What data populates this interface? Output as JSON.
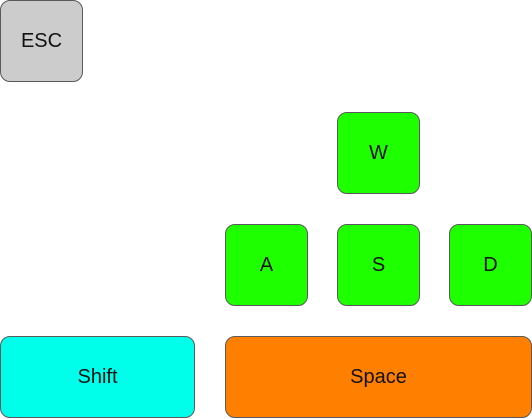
{
  "keys": {
    "esc": {
      "label": "ESC",
      "color": "#cccccc"
    },
    "w": {
      "label": "W",
      "color": "#1eff00"
    },
    "a": {
      "label": "A",
      "color": "#1eff00"
    },
    "s": {
      "label": "S",
      "color": "#1eff00"
    },
    "d": {
      "label": "D",
      "color": "#1eff00"
    },
    "shift": {
      "label": "Shift",
      "color": "#00ffea"
    },
    "space": {
      "label": "Space",
      "color": "#ff7f00"
    }
  }
}
